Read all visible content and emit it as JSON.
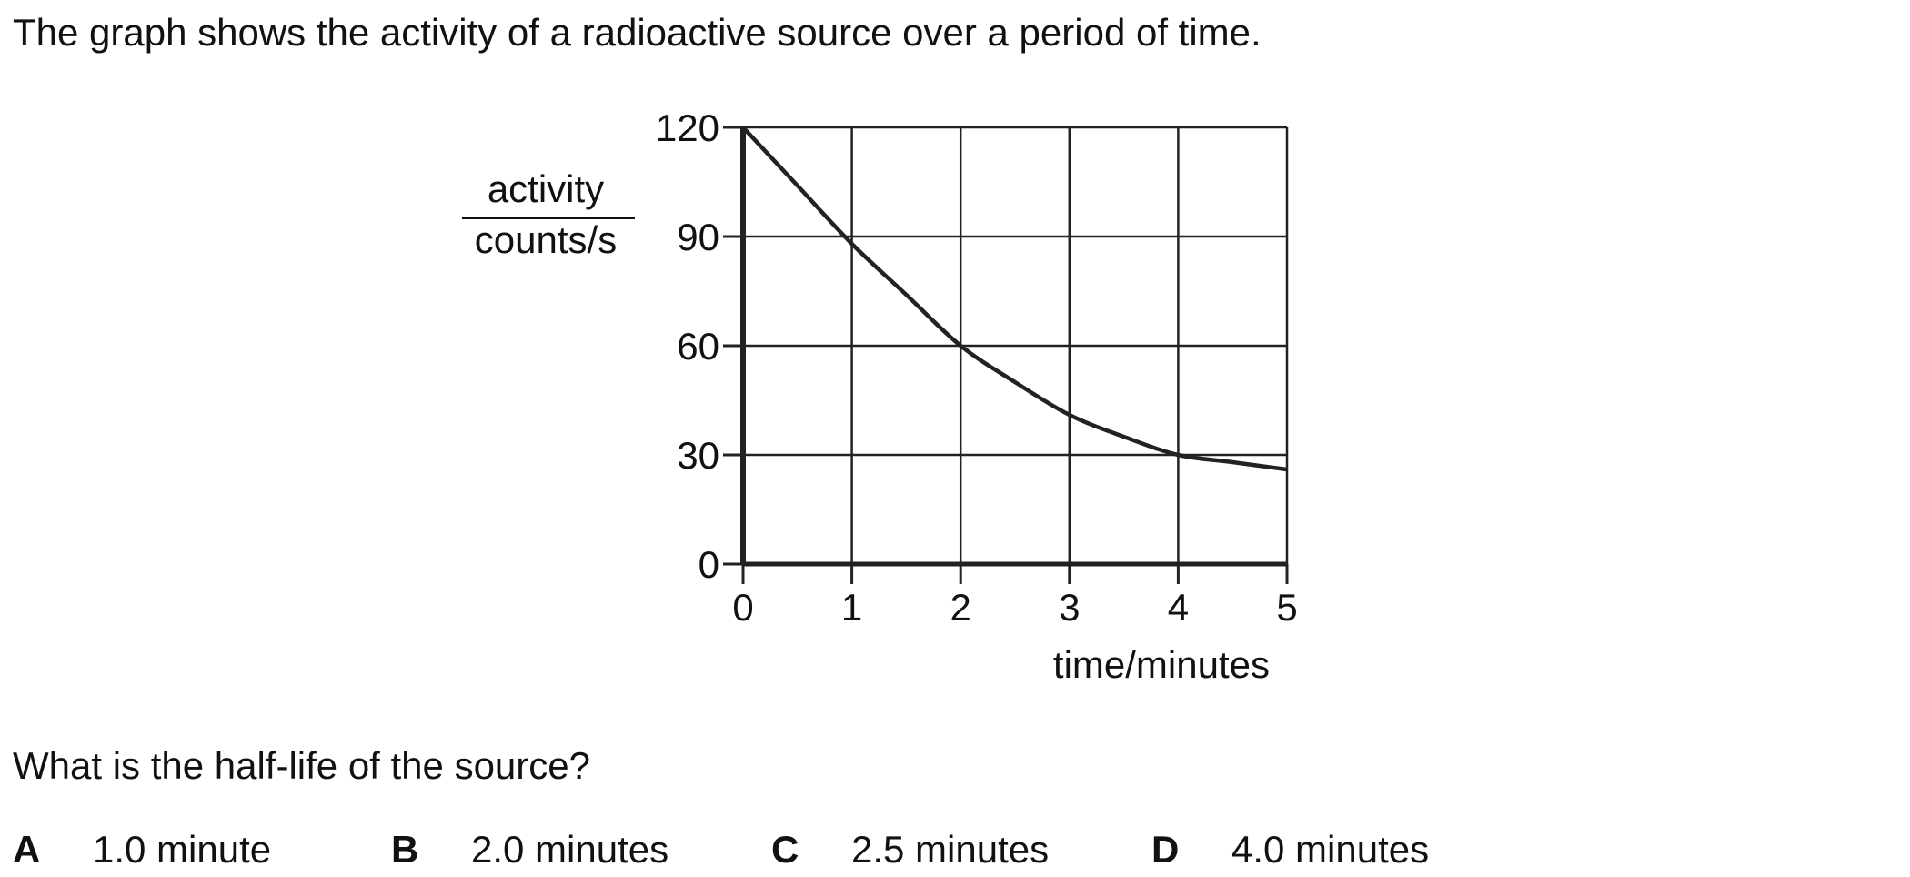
{
  "question": {
    "intro": "The graph shows the activity of a radioactive source over a period of time.",
    "prompt": "What is the half-life of the source?",
    "options": [
      {
        "letter": "A",
        "text": "1.0 minute"
      },
      {
        "letter": "B",
        "text": "2.0 minutes"
      },
      {
        "letter": "C",
        "text": "2.5 minutes"
      },
      {
        "letter": "D",
        "text": "4.0 minutes"
      }
    ]
  },
  "chart_data": {
    "type": "line",
    "title": "",
    "xlabel": "time/minutes",
    "ylabel_numerator": "activity",
    "ylabel_denominator": "counts/s",
    "xlim": [
      0,
      5
    ],
    "ylim": [
      0,
      120
    ],
    "x_ticks": [
      "0",
      "1",
      "2",
      "3",
      "4",
      "5"
    ],
    "y_ticks": [
      "0",
      "30",
      "60",
      "90",
      "120"
    ],
    "grid": true,
    "series": [
      {
        "x": [
          0,
          0.5,
          1,
          1.5,
          2,
          2.5,
          3,
          3.5,
          4,
          4.5,
          5
        ],
        "y": [
          120,
          104,
          88,
          74,
          60,
          50,
          41,
          35,
          30,
          28,
          26
        ]
      }
    ]
  }
}
